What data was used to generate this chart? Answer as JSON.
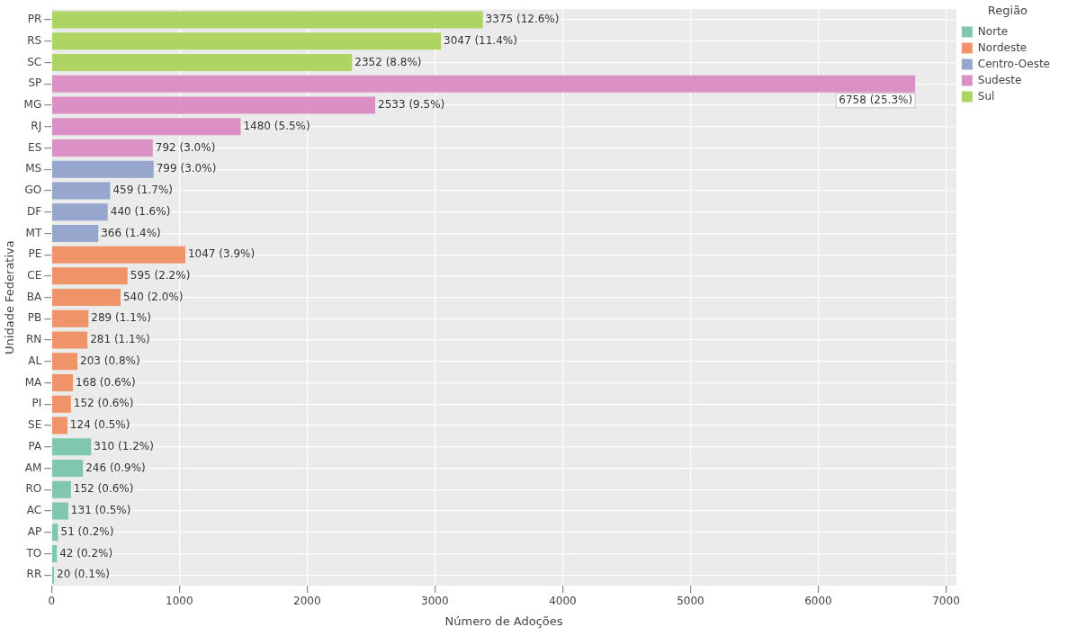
{
  "chart_data": {
    "type": "bar",
    "orientation": "horizontal",
    "xlabel": "Número de Adoções",
    "ylabel": "Unidade Federativa",
    "legend_title": "Região",
    "legend": "top right",
    "grid": true,
    "categories": [
      "PR",
      "RS",
      "SC",
      "SP",
      "MG",
      "RJ",
      "ES",
      "MS",
      "GO",
      "DF",
      "MT",
      "PE",
      "CE",
      "BA",
      "PB",
      "RN",
      "AL",
      "MA",
      "PI",
      "SE",
      "PA",
      "AM",
      "RO",
      "AC",
      "AP",
      "TO",
      "RR"
    ],
    "xlim": [
      0,
      7080
    ],
    "xticks": [
      0,
      1000,
      2000,
      3000,
      4000,
      5000,
      6000,
      7000
    ],
    "series": [
      {
        "name": "Norte",
        "color": "#7fc7ad",
        "values": [
          null,
          null,
          null,
          null,
          null,
          null,
          null,
          null,
          null,
          null,
          null,
          null,
          null,
          null,
          null,
          null,
          null,
          null,
          null,
          null,
          310,
          246,
          152,
          131,
          51,
          42,
          20
        ],
        "value_labels": [
          null,
          null,
          null,
          null,
          null,
          null,
          null,
          null,
          null,
          null,
          null,
          null,
          null,
          null,
          null,
          null,
          null,
          null,
          null,
          null,
          "310 (1.2%)",
          "246 (0.9%)",
          "152 (0.6%)",
          "131 (0.5%)",
          "51 (0.2%)",
          "42 (0.2%)",
          "20 (0.1%)"
        ]
      },
      {
        "name": "Nordeste",
        "color": "#ee9468",
        "values": [
          null,
          null,
          null,
          null,
          null,
          null,
          null,
          null,
          null,
          null,
          null,
          1047,
          595,
          540,
          289,
          281,
          203,
          168,
          152,
          124,
          null,
          null,
          null,
          null,
          null,
          null,
          null
        ],
        "value_labels": [
          null,
          null,
          null,
          null,
          null,
          null,
          null,
          null,
          null,
          null,
          null,
          "1047 (3.9%)",
          "595 (2.2%)",
          "540 (2.0%)",
          "289 (1.1%)",
          "281 (1.1%)",
          "203 (0.8%)",
          "168 (0.6%)",
          "152 (0.6%)",
          "124 (0.5%)",
          null,
          null,
          null,
          null,
          null,
          null,
          null
        ]
      },
      {
        "name": "Centro-Oeste",
        "color": "#96a6cc",
        "values": [
          null,
          null,
          null,
          null,
          null,
          null,
          null,
          799,
          459,
          440,
          366,
          null,
          null,
          null,
          null,
          null,
          null,
          null,
          null,
          null,
          null,
          null,
          null,
          null,
          null,
          null,
          null
        ],
        "value_labels": [
          null,
          null,
          null,
          null,
          null,
          null,
          null,
          "799 (3.0%)",
          "459 (1.7%)",
          "440 (1.6%)",
          "366 (1.4%)",
          null,
          null,
          null,
          null,
          null,
          null,
          null,
          null,
          null,
          null,
          null,
          null,
          null,
          null,
          null,
          null
        ]
      },
      {
        "name": "Sudeste",
        "color": "#db8fc4",
        "values": [
          null,
          null,
          null,
          6758,
          2533,
          1480,
          792,
          null,
          null,
          null,
          null,
          null,
          null,
          null,
          null,
          null,
          null,
          null,
          null,
          null,
          null,
          null,
          null,
          null,
          null,
          null,
          null
        ],
        "value_labels": [
          null,
          null,
          null,
          "6758 (25.3%)",
          "2533 (9.5%)",
          "1480 (5.5%)",
          "792 (3.0%)",
          null,
          null,
          null,
          null,
          null,
          null,
          null,
          null,
          null,
          null,
          null,
          null,
          null,
          null,
          null,
          null,
          null,
          null,
          null,
          null
        ]
      },
      {
        "name": "Sul",
        "color": "#aed563",
        "values": [
          3375,
          3047,
          2352,
          null,
          null,
          null,
          null,
          null,
          null,
          null,
          null,
          null,
          null,
          null,
          null,
          null,
          null,
          null,
          null,
          null,
          null,
          null,
          null,
          null,
          null,
          null,
          null
        ],
        "value_labels": [
          "3375 (12.6%)",
          "3047 (11.4%)",
          "2352 (8.8%)",
          null,
          null,
          null,
          null,
          null,
          null,
          null,
          null,
          null,
          null,
          null,
          null,
          null,
          null,
          null,
          null,
          null,
          null,
          null,
          null,
          null,
          null,
          null,
          null
        ]
      }
    ]
  }
}
